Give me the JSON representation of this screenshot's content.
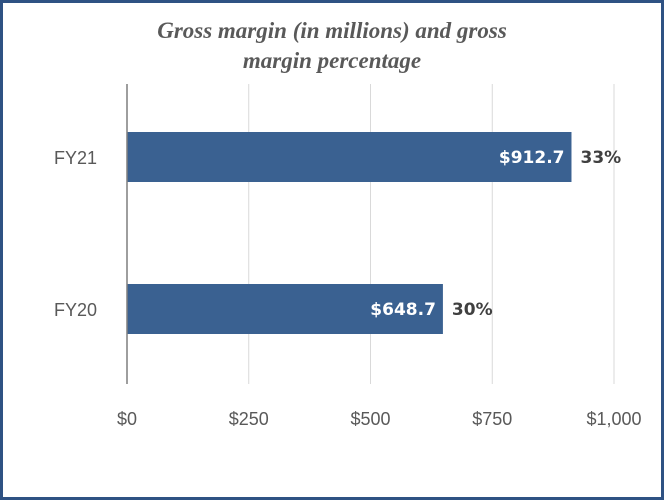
{
  "chart_data": {
    "type": "bar",
    "orientation": "horizontal",
    "title_lines": [
      "Gross margin (in millions) and gross",
      "margin percentage"
    ],
    "categories": [
      "FY21",
      "FY20"
    ],
    "series": [
      {
        "values": [
          912.7,
          648.7
        ],
        "value_labels": [
          "$912.7",
          "$648.7"
        ],
        "percent_labels": [
          "33%",
          "30%"
        ],
        "color": "#3a6191"
      }
    ],
    "xlim": [
      0,
      1000
    ],
    "x_ticks": [
      0,
      250,
      500,
      750,
      1000
    ],
    "x_tick_labels": [
      "$0",
      "$250",
      "$500",
      "$750",
      "$1,000"
    ],
    "xlabel": "",
    "ylabel": "",
    "grid": true,
    "legend": "none",
    "colors": {
      "frame": "#2f5283",
      "bar": "#3a6191",
      "grid": "#d9d9d9",
      "axis": "#7f7f7f"
    }
  }
}
